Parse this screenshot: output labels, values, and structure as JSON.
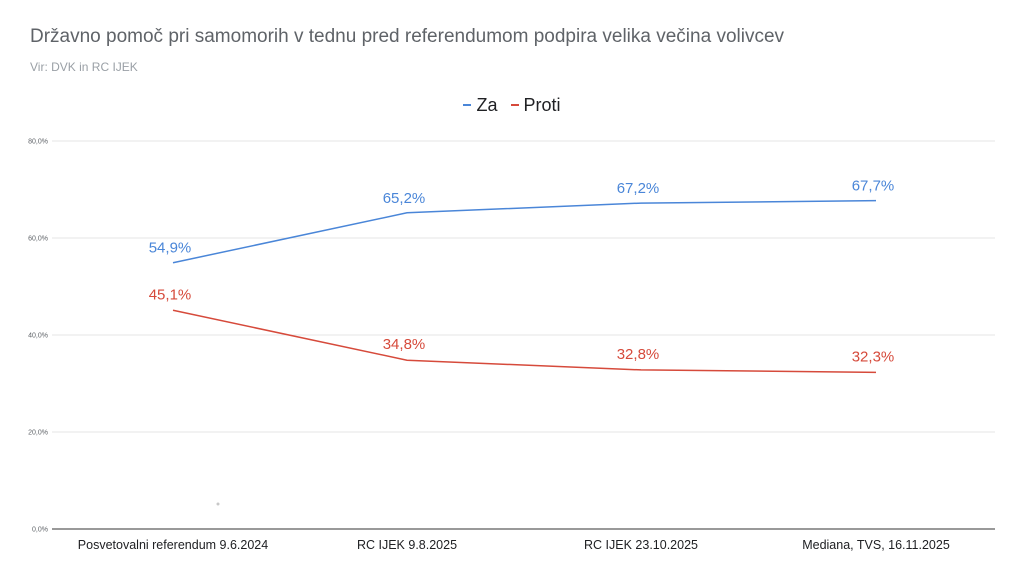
{
  "chart_data": {
    "type": "line",
    "title": "Državno pomoč pri samomorih v tednu pred referendumom podpira velika večina volivcev",
    "subtitle": "Vir: DVK in RC IJEK",
    "categories": [
      "Posvetovalni referendum 9.6.2024",
      "RC IJEK 9.8.2025",
      "RC IJEK 23.10.2025",
      "Mediana, TVS, 16.11.2025"
    ],
    "series": [
      {
        "name": "Za",
        "color": "#4a86d8",
        "values": [
          54.9,
          65.2,
          67.2,
          67.7
        ],
        "labels": [
          "54,9%",
          "65,2%",
          "67,2%",
          "67,7%"
        ]
      },
      {
        "name": "Proti",
        "color": "#d64a3b",
        "values": [
          45.1,
          34.8,
          32.8,
          32.3
        ],
        "labels": [
          "45,1%",
          "34,8%",
          "32,8%",
          "32,3%"
        ]
      }
    ],
    "y_ticks": [
      0,
      20,
      40,
      60,
      80
    ],
    "y_tick_labels": [
      "0,0%",
      "20,0%",
      "40,0%",
      "60,0%",
      "80,0%"
    ],
    "ylim": [
      0,
      80
    ],
    "grid": true,
    "legend_position": "top-center"
  }
}
